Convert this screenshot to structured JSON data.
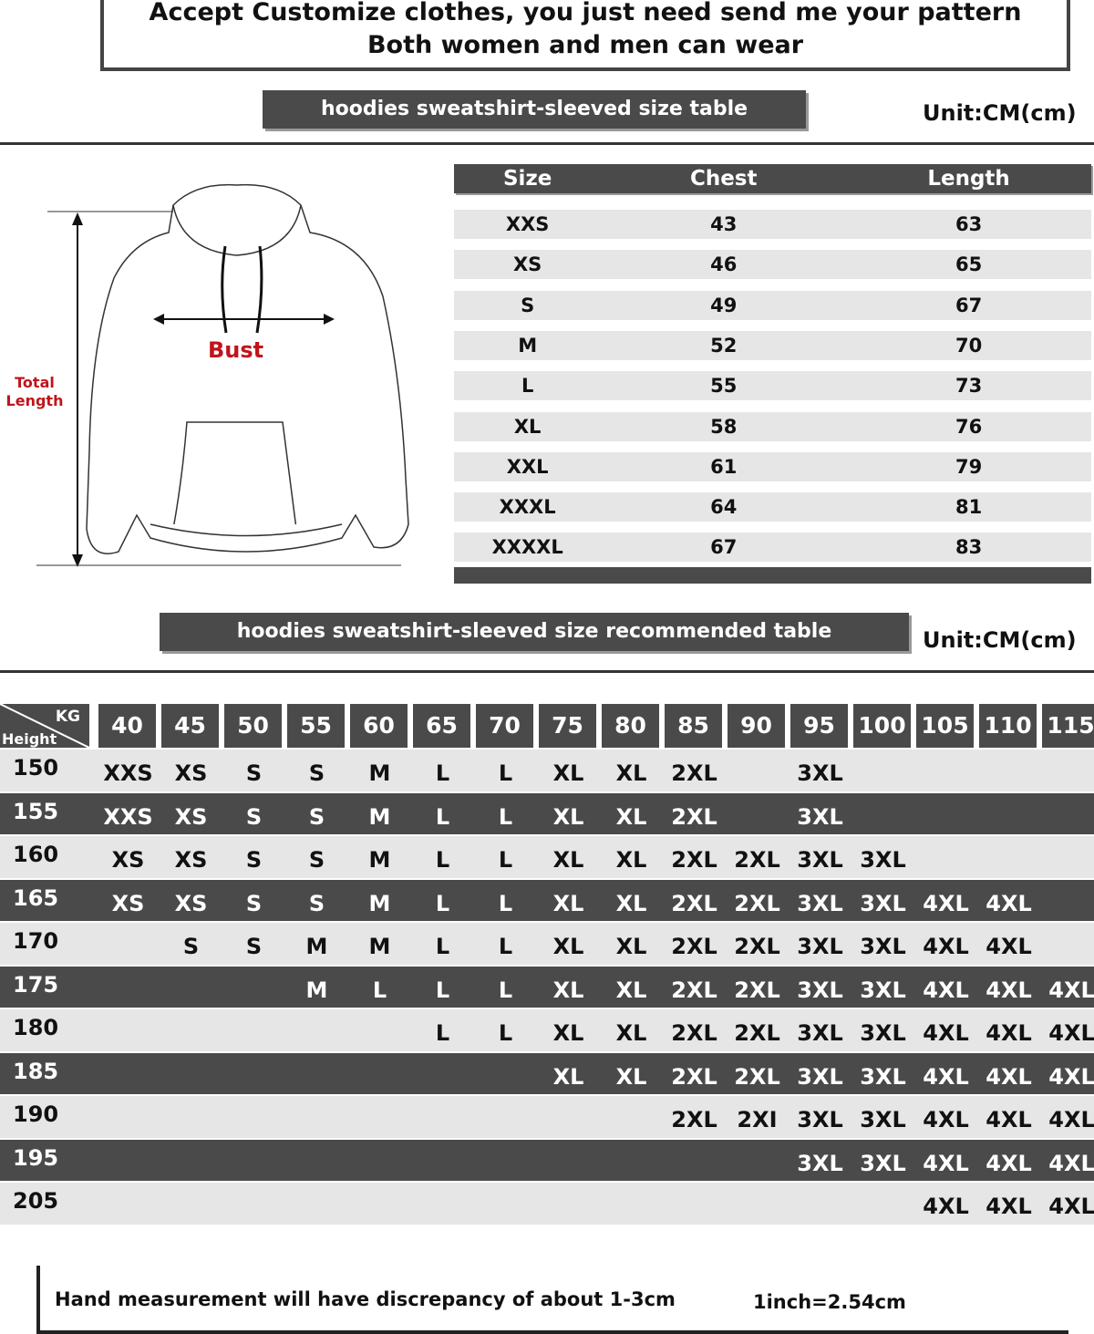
{
  "banner": {
    "line1": "Accept Customize clothes, you just need send me your pattern",
    "line2": "Both women and men can wear"
  },
  "size_table": {
    "title": "hoodies sweatshirt-sleeved size  table",
    "unit": "Unit:CM(cm)",
    "headers": [
      "Size",
      "Chest",
      "Length"
    ],
    "rows": [
      [
        "XXS",
        "43",
        "63"
      ],
      [
        "XS",
        "46",
        "65"
      ],
      [
        "S",
        "49",
        "67"
      ],
      [
        "M",
        "52",
        "70"
      ],
      [
        "L",
        "55",
        "73"
      ],
      [
        "XL",
        "58",
        "76"
      ],
      [
        "XXL",
        "61",
        "79"
      ],
      [
        "XXXL",
        "64",
        "81"
      ],
      [
        "XXXXL",
        "67",
        "83"
      ]
    ]
  },
  "diagram": {
    "bust_label": "Bust",
    "total_length_label": "Total Length"
  },
  "recommend_table": {
    "title": "hoodies sweatshirt-sleeved size recommended table",
    "unit": "Unit:CM(cm)",
    "corner_kg": "KG",
    "corner_height": "Height",
    "weights": [
      "40",
      "45",
      "50",
      "55",
      "60",
      "65",
      "70",
      "75",
      "80",
      "85",
      "90",
      "95",
      "100",
      "105",
      "110",
      "115"
    ],
    "rows": [
      {
        "height": "150",
        "cells": [
          "XXS",
          "XS",
          "S",
          "S",
          "M",
          "L",
          "L",
          "XL",
          "XL",
          "2XL",
          "",
          "3XL",
          "",
          "",
          "",
          ""
        ]
      },
      {
        "height": "155",
        "cells": [
          "XXS",
          "XS",
          "S",
          "S",
          "M",
          "L",
          "L",
          "XL",
          "XL",
          "2XL",
          "",
          "3XL",
          "",
          "",
          "",
          ""
        ]
      },
      {
        "height": "160",
        "cells": [
          "XS",
          "XS",
          "S",
          "S",
          "M",
          "L",
          "L",
          "XL",
          "XL",
          "2XL",
          "2XL",
          "3XL",
          "3XL",
          "",
          "",
          ""
        ]
      },
      {
        "height": "165",
        "cells": [
          "XS",
          "XS",
          "S",
          "S",
          "M",
          "L",
          "L",
          "XL",
          "XL",
          "2XL",
          "2XL",
          "3XL",
          "3XL",
          "4XL",
          "4XL",
          ""
        ]
      },
      {
        "height": "170",
        "cells": [
          "",
          "S",
          "S",
          "M",
          "M",
          "L",
          "L",
          "XL",
          "XL",
          "2XL",
          "2XL",
          "3XL",
          "3XL",
          "4XL",
          "4XL",
          ""
        ]
      },
      {
        "height": "175",
        "cells": [
          "",
          "",
          "",
          "M",
          "L",
          "L",
          "L",
          "XL",
          "XL",
          "2XL",
          "2XL",
          "3XL",
          "3XL",
          "4XL",
          "4XL",
          "4XL"
        ]
      },
      {
        "height": "180",
        "cells": [
          "",
          "",
          "",
          "",
          "",
          "L",
          "L",
          "XL",
          "XL",
          "2XL",
          "2XL",
          "3XL",
          "3XL",
          "4XL",
          "4XL",
          "4XL"
        ]
      },
      {
        "height": "185",
        "cells": [
          "",
          "",
          "",
          "",
          "",
          "",
          "",
          "XL",
          "XL",
          "2XL",
          "2XL",
          "3XL",
          "3XL",
          "4XL",
          "4XL",
          "4XL"
        ]
      },
      {
        "height": "190",
        "cells": [
          "",
          "",
          "",
          "",
          "",
          "",
          "",
          "",
          "",
          "2XL",
          "2XI",
          "3XL",
          "3XL",
          "4XL",
          "4XL",
          "4XL"
        ]
      },
      {
        "height": "195",
        "cells": [
          "",
          "",
          "",
          "",
          "",
          "",
          "",
          "",
          "",
          "",
          "",
          "3XL",
          "3XL",
          "4XL",
          "4XL",
          "4XL"
        ]
      },
      {
        "height": "205",
        "cells": [
          "",
          "",
          "",
          "",
          "",
          "",
          "",
          "",
          "",
          "",
          "",
          "",
          "",
          "4XL",
          "4XL",
          "4XL"
        ]
      }
    ]
  },
  "footer": {
    "note": "Hand measurement will have discrepancy of about  1-3cm",
    "conversion": "1inch=2.54cm"
  },
  "colors": {
    "dark": "#4a4a4a",
    "light": "#e6e6e6",
    "accent_red": "#c0141c"
  }
}
